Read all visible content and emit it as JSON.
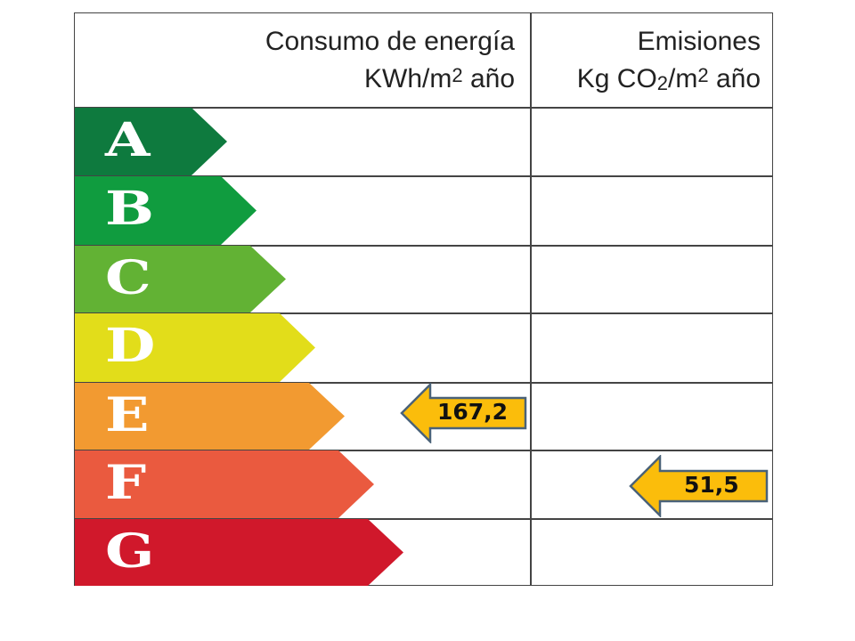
{
  "header": {
    "energy_line1": "Consumo de energía",
    "energy_line2_pre": "KWh/m",
    "energy_line2_sup": "2",
    "energy_line2_post": " año",
    "emis_line1": "Emisiones",
    "emis_line2_pre": "Kg CO",
    "emis_line2_sub": "2",
    "emis_line2_mid": "/m",
    "emis_line2_sup": "2",
    "emis_line2_post": " año"
  },
  "ratings": [
    {
      "letter": "A",
      "color": "#0e7a3e"
    },
    {
      "letter": "B",
      "color": "#109c3f"
    },
    {
      "letter": "C",
      "color": "#62b234"
    },
    {
      "letter": "D",
      "color": "#e2dd1a"
    },
    {
      "letter": "E",
      "color": "#f29a31"
    },
    {
      "letter": "F",
      "color": "#ea5a3f"
    },
    {
      "letter": "G",
      "color": "#d0182b"
    }
  ],
  "indicators": {
    "energy": {
      "value": "167,2",
      "rating": "E",
      "color": "#fbbd0b"
    },
    "emissions": {
      "value": "51,5",
      "rating": "F",
      "color": "#fbbd0b"
    }
  }
}
